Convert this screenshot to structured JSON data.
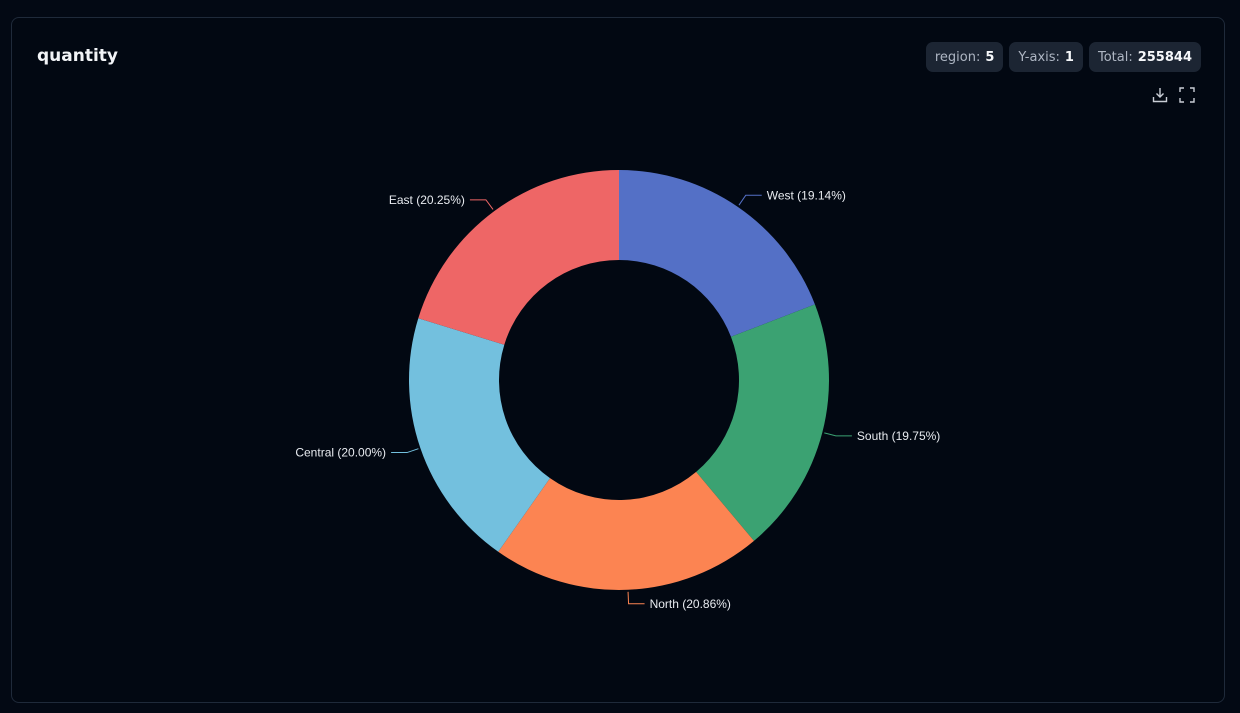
{
  "header": {
    "title": "quantity",
    "badges": [
      {
        "label": "region:",
        "value": "5"
      },
      {
        "label": "Y-axis:",
        "value": "1"
      },
      {
        "label": "Total:",
        "value": "255844"
      }
    ]
  },
  "toolbar": {
    "download_icon": "download-icon",
    "fullscreen_icon": "fullscreen-icon"
  },
  "chart_data": {
    "type": "pie",
    "donut": true,
    "total": 255844,
    "slices": [
      {
        "name": "West",
        "percent": 19.14,
        "label": "West (19.14%)",
        "color": "#5470c6"
      },
      {
        "name": "South",
        "percent": 19.75,
        "label": "South (19.75%)",
        "color": "#3ba272"
      },
      {
        "name": "North",
        "percent": 20.86,
        "label": "North (20.86%)",
        "color": "#fc8452"
      },
      {
        "name": "Central",
        "percent": 20.0,
        "label": "Central (20.00%)",
        "color": "#73c0de"
      },
      {
        "name": "East",
        "percent": 20.25,
        "label": "East (20.25%)",
        "color": "#ee6666"
      }
    ]
  }
}
